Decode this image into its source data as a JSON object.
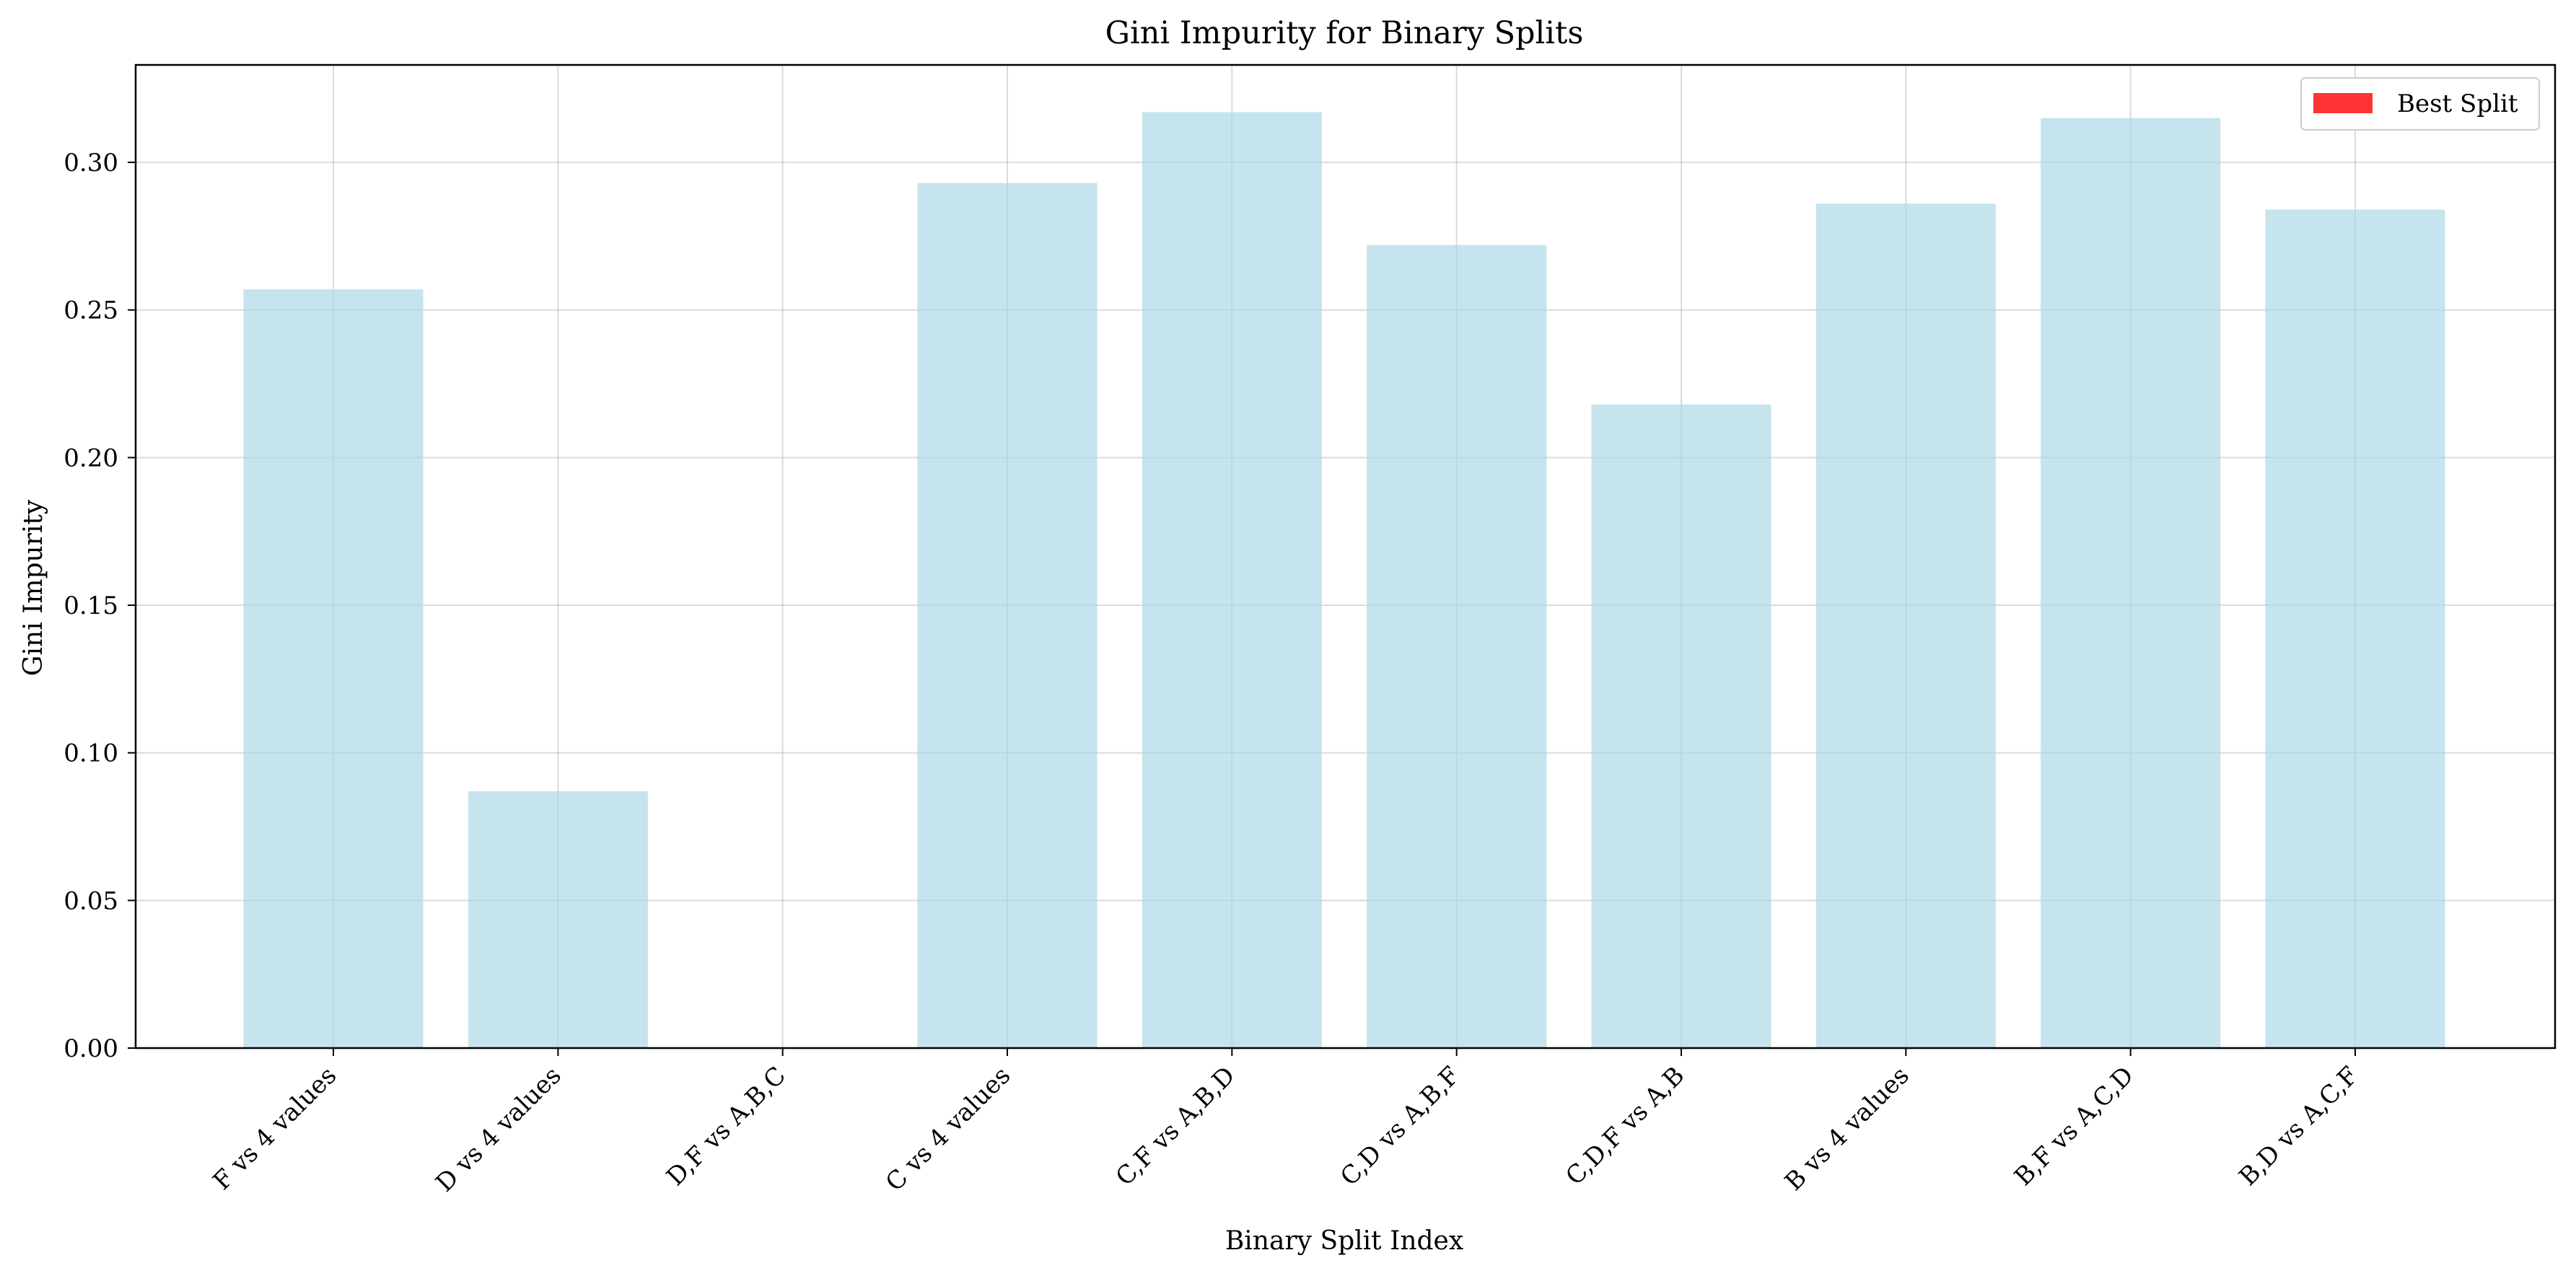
{
  "chart_data": {
    "type": "bar",
    "title": "Gini Impurity for Binary Splits",
    "xlabel": "Binary Split Index",
    "ylabel": "Gini Impurity",
    "categories": [
      "F vs 4 values",
      "D vs 4 values",
      "D,F vs A,B,C",
      "C vs 4 values",
      "C,F vs A,B,D",
      "C,D vs A,B,F",
      "C,D,F vs A,B",
      "B vs 4 values",
      "B,F vs A,C,D",
      "B,D vs A,C,F"
    ],
    "series": [
      {
        "values": [
          0.257,
          0.087,
          0.0,
          0.293,
          0.317,
          0.272,
          0.218,
          0.286,
          0.315,
          0.284
        ],
        "color": "#add8e6",
        "opacity": 0.7
      }
    ],
    "best_split_index": 2,
    "best_split_color": "#ff0000",
    "ylim": [
      0,
      0.333
    ],
    "yticks": [
      "0.00",
      "0.05",
      "0.10",
      "0.15",
      "0.20",
      "0.25",
      "0.30"
    ],
    "grid": true,
    "legend": {
      "position": "top-right",
      "entries": [
        {
          "label": "Best Split",
          "color": "#ff0000"
        }
      ]
    }
  }
}
